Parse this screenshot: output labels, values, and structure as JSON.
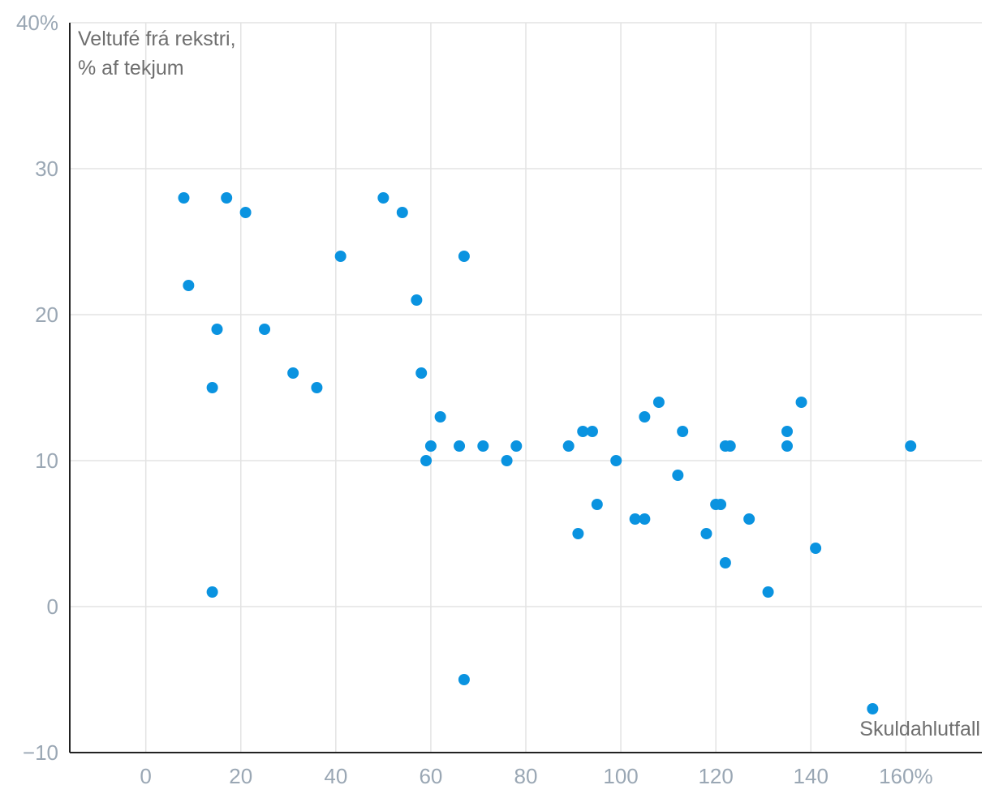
{
  "chart_data": {
    "type": "scatter",
    "ylabel_lines": [
      "Veltufé frá rekstri,",
      "% af tekjum"
    ],
    "xlabel": "Skuldahlutfall",
    "xlim": [
      -16,
      176
    ],
    "ylim": [
      -10,
      40
    ],
    "x_ticks": [
      {
        "value": 0,
        "label": "0"
      },
      {
        "value": 20,
        "label": "20"
      },
      {
        "value": 40,
        "label": "40"
      },
      {
        "value": 60,
        "label": "60"
      },
      {
        "value": 80,
        "label": "80"
      },
      {
        "value": 100,
        "label": "100"
      },
      {
        "value": 120,
        "label": "120"
      },
      {
        "value": 140,
        "label": "140"
      },
      {
        "value": 160,
        "label": "160%"
      }
    ],
    "y_ticks": [
      {
        "value": -10,
        "label": "−10"
      },
      {
        "value": 0,
        "label": "0"
      },
      {
        "value": 10,
        "label": "10"
      },
      {
        "value": 20,
        "label": "20"
      },
      {
        "value": 30,
        "label": "30"
      },
      {
        "value": 40,
        "label": "40%"
      }
    ],
    "grid": true,
    "point_color": "#0a93e0",
    "points": [
      {
        "x": 8,
        "y": 28
      },
      {
        "x": 9,
        "y": 22
      },
      {
        "x": 14,
        "y": 15
      },
      {
        "x": 14,
        "y": 1
      },
      {
        "x": 15,
        "y": 19
      },
      {
        "x": 17,
        "y": 28
      },
      {
        "x": 21,
        "y": 27
      },
      {
        "x": 25,
        "y": 19
      },
      {
        "x": 31,
        "y": 16
      },
      {
        "x": 36,
        "y": 15
      },
      {
        "x": 41,
        "y": 24
      },
      {
        "x": 50,
        "y": 28
      },
      {
        "x": 54,
        "y": 27
      },
      {
        "x": 57,
        "y": 21
      },
      {
        "x": 58,
        "y": 16
      },
      {
        "x": 59,
        "y": 10
      },
      {
        "x": 60,
        "y": 11
      },
      {
        "x": 62,
        "y": 13
      },
      {
        "x": 66,
        "y": 11
      },
      {
        "x": 67,
        "y": 24
      },
      {
        "x": 67,
        "y": -5
      },
      {
        "x": 71,
        "y": 11
      },
      {
        "x": 76,
        "y": 10
      },
      {
        "x": 78,
        "y": 11
      },
      {
        "x": 89,
        "y": 11
      },
      {
        "x": 91,
        "y": 5
      },
      {
        "x": 92,
        "y": 12
      },
      {
        "x": 94,
        "y": 12
      },
      {
        "x": 95,
        "y": 7
      },
      {
        "x": 99,
        "y": 10
      },
      {
        "x": 103,
        "y": 6
      },
      {
        "x": 105,
        "y": 6
      },
      {
        "x": 105,
        "y": 13
      },
      {
        "x": 108,
        "y": 14
      },
      {
        "x": 112,
        "y": 9
      },
      {
        "x": 113,
        "y": 12
      },
      {
        "x": 118,
        "y": 5
      },
      {
        "x": 120,
        "y": 7
      },
      {
        "x": 121,
        "y": 7
      },
      {
        "x": 122,
        "y": 11
      },
      {
        "x": 122,
        "y": 3
      },
      {
        "x": 123,
        "y": 11
      },
      {
        "x": 127,
        "y": 6
      },
      {
        "x": 131,
        "y": 1
      },
      {
        "x": 135,
        "y": 12
      },
      {
        "x": 135,
        "y": 11
      },
      {
        "x": 138,
        "y": 14
      },
      {
        "x": 141,
        "y": 4
      },
      {
        "x": 153,
        "y": -7
      },
      {
        "x": 161,
        "y": 11
      }
    ]
  }
}
